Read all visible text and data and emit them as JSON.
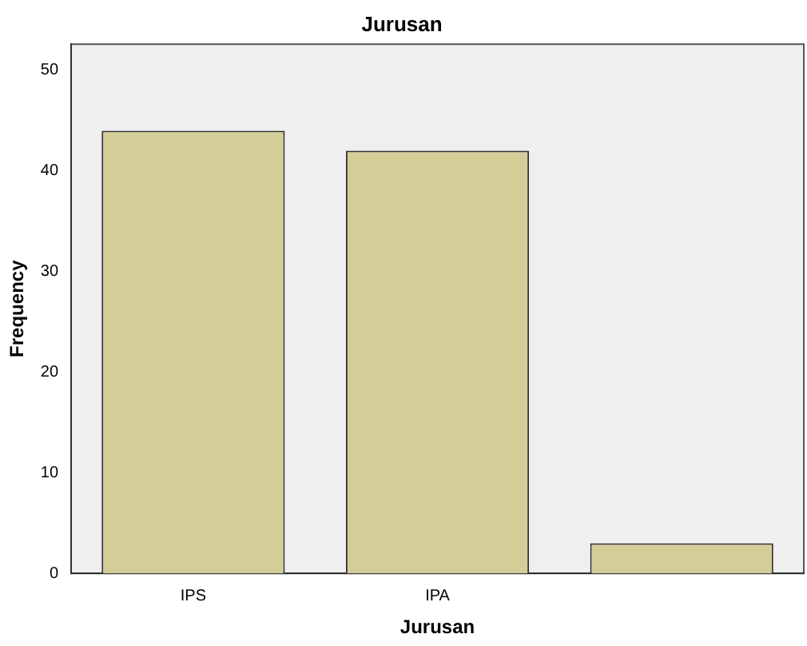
{
  "chart_data": {
    "type": "bar",
    "title": "Jurusan",
    "xlabel": "Jurusan",
    "ylabel": "Frequency",
    "categories": [
      "IPS",
      "IPA",
      null
    ],
    "values": [
      44,
      42,
      3
    ],
    "color": "#d3ce98",
    "ylim": [
      0,
      52.6
    ],
    "yticks": [
      0,
      10,
      20,
      30,
      40,
      50
    ],
    "grid": false,
    "legend": false
  }
}
